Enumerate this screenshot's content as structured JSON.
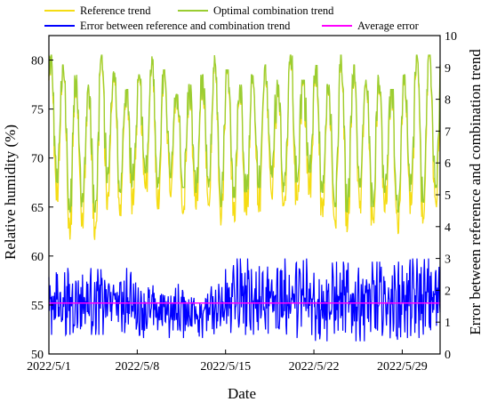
{
  "chart_data": {
    "type": "line",
    "xlabel": "Date",
    "ylabel_left": "Relative humidity (%)",
    "ylabel_right": "Error between reference and combination trend",
    "x_ticks": [
      "2022/5/1",
      "2022/5/8",
      "2022/5/15",
      "2022/5/22",
      "2022/5/29"
    ],
    "x_range_days": [
      0,
      31
    ],
    "x_tick_days": [
      0,
      7,
      14,
      21,
      28
    ],
    "ylim_left": [
      50,
      82.5
    ],
    "yticks_left": [
      "50",
      "55",
      "60",
      "65",
      "70",
      "75",
      "80"
    ],
    "ylim_right": [
      0,
      10
    ],
    "yticks_right": [
      "0",
      "1",
      "2",
      "3",
      "4",
      "5",
      "6",
      "7",
      "8",
      "9",
      "10"
    ],
    "grid": false,
    "legend_position": "top",
    "average_error": 1.6,
    "colors": {
      "reference": "#f5dc14",
      "optimal": "#9acd32",
      "error": "#0000ff",
      "average": "#ff00ff"
    },
    "series": [
      {
        "name": "Reference trend",
        "axis": "left",
        "role": "reference"
      },
      {
        "name": "Optimal combination trend",
        "axis": "left",
        "role": "optimal"
      },
      {
        "name": "Error between reference and combination trend",
        "axis": "right",
        "role": "error"
      },
      {
        "name": "Average error",
        "axis": "right",
        "role": "average"
      }
    ],
    "daily_humidity_range": [
      {
        "min": 67.5,
        "max": 80.5
      },
      {
        "min": 64.5,
        "max": 79.5
      },
      {
        "min": 65,
        "max": 78.5
      },
      {
        "min": 64.5,
        "max": 77.5
      },
      {
        "min": 67.5,
        "max": 80.5
      },
      {
        "min": 66.5,
        "max": 79
      },
      {
        "min": 67,
        "max": 77
      },
      {
        "min": 68.5,
        "max": 78.5
      },
      {
        "min": 67,
        "max": 80.5
      },
      {
        "min": 68,
        "max": 79
      },
      {
        "min": 67,
        "max": 76.5
      },
      {
        "min": 66.5,
        "max": 77.5
      },
      {
        "min": 67,
        "max": 78.5
      },
      {
        "min": 65,
        "max": 80.5
      },
      {
        "min": 66,
        "max": 79
      },
      {
        "min": 66.5,
        "max": 77.5
      },
      {
        "min": 67,
        "max": 78.5
      },
      {
        "min": 68,
        "max": 79.5
      },
      {
        "min": 66.5,
        "max": 78
      },
      {
        "min": 67.5,
        "max": 80.5
      },
      {
        "min": 68.5,
        "max": 78
      },
      {
        "min": 66.5,
        "max": 79.5
      },
      {
        "min": 65,
        "max": 77.5
      },
      {
        "min": 64.5,
        "max": 80.5
      },
      {
        "min": 67,
        "max": 79.5
      },
      {
        "min": 65,
        "max": 78
      },
      {
        "min": 66.5,
        "max": 78.5
      },
      {
        "min": 64.5,
        "max": 77
      },
      {
        "min": 66.5,
        "max": 78.5
      },
      {
        "min": 65.5,
        "max": 80.5
      },
      {
        "min": 67,
        "max": 80.5
      }
    ],
    "error_band_by_week": [
      {
        "min": 0.6,
        "max": 2.7
      },
      {
        "min": 0.5,
        "max": 2.2
      },
      {
        "min": 0.5,
        "max": 3.0
      },
      {
        "min": 0.4,
        "max": 2.9
      },
      {
        "min": 0.5,
        "max": 3.0
      }
    ]
  }
}
